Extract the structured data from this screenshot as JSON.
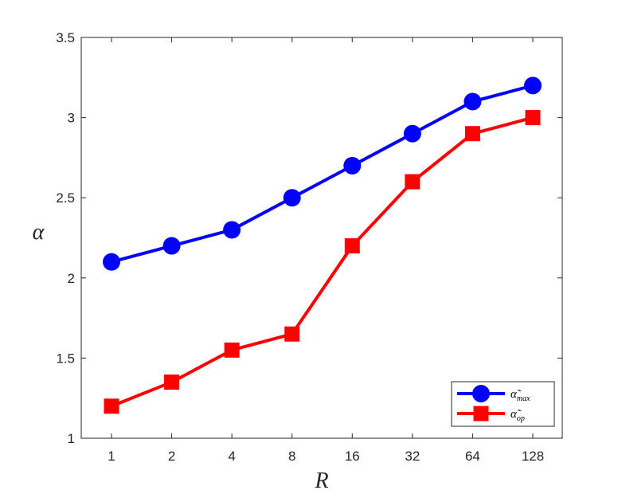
{
  "chart_data": {
    "type": "line",
    "categories": [
      "1",
      "2",
      "4",
      "8",
      "16",
      "32",
      "64",
      "128"
    ],
    "series": [
      {
        "name": "α̃max",
        "symbol": "α̃",
        "subscript": "max",
        "marker": "circle",
        "color": "#0000FF",
        "values": [
          2.1,
          2.2,
          2.3,
          2.5,
          2.7,
          2.9,
          3.1,
          3.2
        ]
      },
      {
        "name": "α̃op",
        "symbol": "α̃",
        "subscript": "op",
        "marker": "square",
        "color": "#FF0000",
        "values": [
          1.2,
          1.35,
          1.55,
          1.65,
          2.2,
          2.6,
          2.9,
          3.0
        ]
      }
    ],
    "xlabel": "R",
    "ylabel": "α",
    "ylim": [
      1,
      3.5
    ],
    "yticks": [
      1,
      1.5,
      2,
      2.5,
      3,
      3.5
    ],
    "ytick_labels": [
      "1",
      "1.5",
      "2",
      "2.5",
      "3",
      "3.5"
    ],
    "grid": false,
    "legend_position": "bottom-right"
  }
}
